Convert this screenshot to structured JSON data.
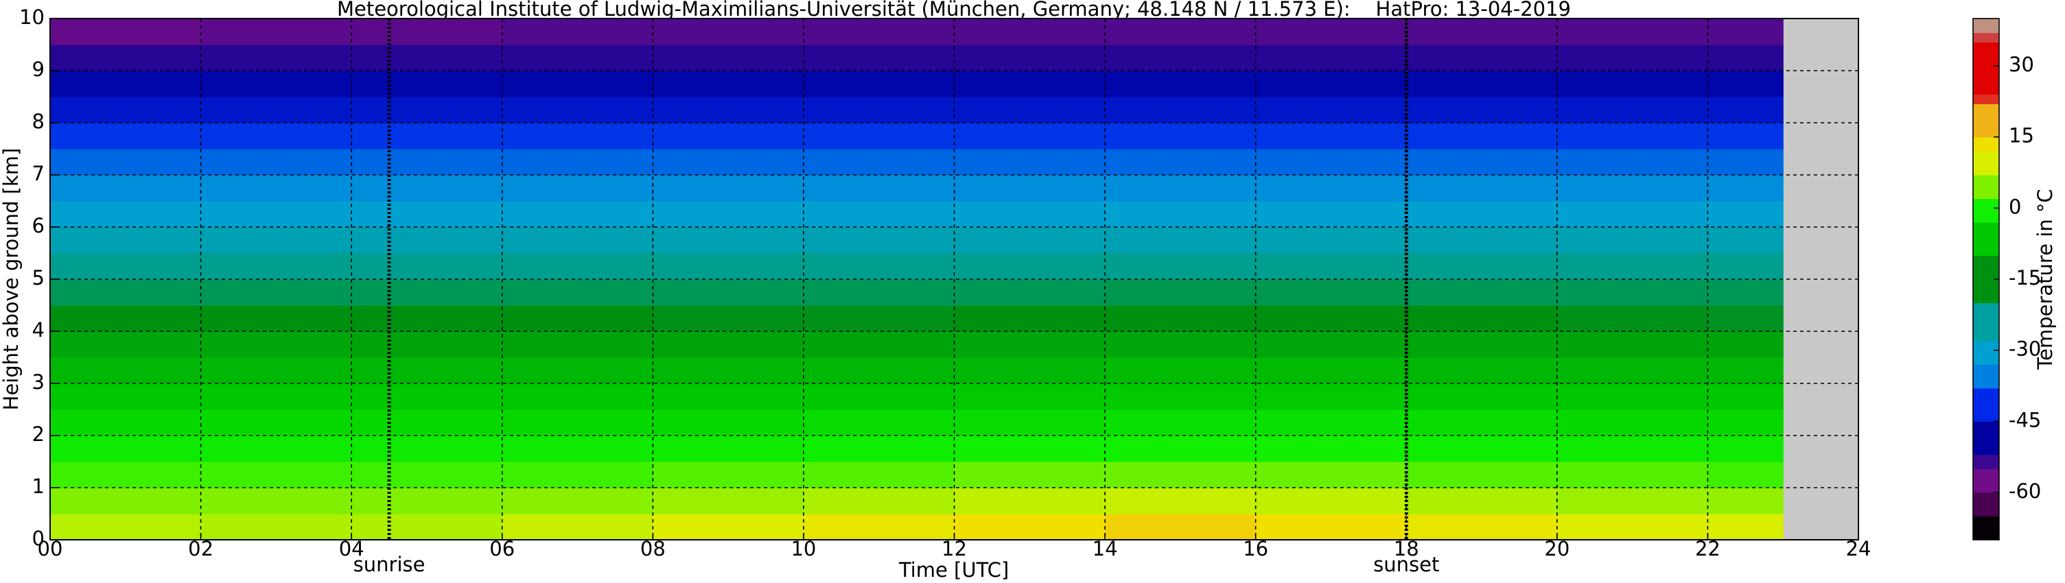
{
  "chart_data": {
    "type": "heatmap",
    "title": "Meteorological Institute of Ludwig-Maximilians-Universität (München, Germany; 48.148 N / 11.573 E):    HatPro: 13-04-2019",
    "x_label": "Time [UTC]",
    "y_label": "Height above ground [km]",
    "colorbar_label": "Temperature in °C",
    "x_edges": [
      0,
      2,
      4,
      6,
      8,
      10,
      12,
      14,
      16,
      18,
      20,
      22,
      23
    ],
    "y_edges": [
      0,
      0.5,
      1,
      1.5,
      2,
      2.5,
      3,
      3.5,
      4,
      4.5,
      5,
      5.5,
      6,
      6.5,
      7,
      7.5,
      8,
      8.5,
      9,
      9.5,
      10
    ],
    "values": [
      [
        5,
        4.5,
        4.5,
        6,
        8,
        10,
        12,
        13,
        12,
        10,
        8,
        7
      ],
      [
        2,
        2,
        2,
        2.5,
        3.5,
        4.5,
        5.5,
        6,
        5.5,
        4.5,
        3.5,
        3
      ],
      [
        -1,
        -1,
        -1,
        -1,
        0,
        0,
        1,
        1,
        1,
        0,
        0,
        -1
      ],
      [
        -4,
        -4,
        -4,
        -4,
        -4,
        -3.5,
        -3,
        -3,
        -3,
        -3.5,
        -4,
        -4
      ],
      [
        -7,
        -7,
        -7,
        -7,
        -7,
        -6.5,
        -6.5,
        -6,
        -6,
        -6.5,
        -7,
        -7
      ],
      [
        -10,
        -10,
        -10,
        -10,
        -10,
        -10,
        -9.5,
        -9.5,
        -9.5,
        -10,
        -10,
        -10
      ],
      [
        -13,
        -13,
        -13,
        -13,
        -13,
        -13,
        -13,
        -12.5,
        -12.5,
        -13,
        -13,
        -13
      ],
      [
        -16,
        -16,
        -16.5,
        -16.5,
        -16.5,
        -16.5,
        -16,
        -16,
        -16,
        -16,
        -16.5,
        -16.5
      ],
      [
        -20,
        -20,
        -20,
        -20,
        -20.5,
        -20.5,
        -20,
        -20,
        -20,
        -20,
        -20.5,
        -21
      ],
      [
        -24,
        -24,
        -24,
        -24,
        -24,
        -24,
        -24,
        -23.5,
        -23.5,
        -24,
        -24,
        -24
      ],
      [
        -27,
        -27,
        -27,
        -27,
        -27,
        -27,
        -27,
        -27,
        -27,
        -27,
        -27,
        -27
      ],
      [
        -30,
        -30,
        -30,
        -30,
        -30,
        -30,
        -30,
        -30,
        -30,
        -30,
        -30,
        -30
      ],
      [
        -33,
        -33,
        -33,
        -33,
        -33,
        -33,
        -33,
        -33,
        -33,
        -33,
        -33,
        -33
      ],
      [
        -36,
        -36,
        -36,
        -36,
        -36,
        -36,
        -36,
        -36,
        -36,
        -36,
        -36,
        -36
      ],
      [
        -40,
        -40,
        -40,
        -40,
        -40,
        -40,
        -40,
        -40,
        -40,
        -40,
        -40,
        -40
      ],
      [
        -44,
        -44,
        -44,
        -44,
        -44,
        -44,
        -44,
        -44,
        -44,
        -44,
        -44,
        -44
      ],
      [
        -48,
        -48,
        -48,
        -48,
        -48,
        -48,
        -48,
        -48,
        -48,
        -48,
        -48,
        -48
      ],
      [
        -51,
        -51,
        -51,
        -51,
        -51,
        -51,
        -51,
        -51,
        -51,
        -51,
        -51,
        -51
      ],
      [
        -54,
        -54,
        -54,
        -54,
        -54,
        -54,
        -54,
        -54,
        -54,
        -54,
        -54,
        -54
      ],
      [
        -59,
        -58,
        -58,
        -57,
        -57,
        -57,
        -57,
        -57,
        -57,
        -57,
        -57,
        -57
      ]
    ],
    "xlim": [
      0,
      24
    ],
    "ylim": [
      0,
      10
    ],
    "clim": [
      -70,
      40
    ],
    "xticks": [
      {
        "value": 0,
        "label": "00"
      },
      {
        "value": 2,
        "label": "02"
      },
      {
        "value": 4,
        "label": "04"
      },
      {
        "value": 6,
        "label": "06"
      },
      {
        "value": 8,
        "label": "08"
      },
      {
        "value": 10,
        "label": "10"
      },
      {
        "value": 12,
        "label": "12"
      },
      {
        "value": 14,
        "label": "14"
      },
      {
        "value": 16,
        "label": "16"
      },
      {
        "value": 18,
        "label": "18"
      },
      {
        "value": 20,
        "label": "20"
      },
      {
        "value": 22,
        "label": "22"
      },
      {
        "value": 24,
        "label": "24"
      }
    ],
    "yticks": [
      0,
      1,
      2,
      3,
      4,
      5,
      6,
      7,
      8,
      9,
      10
    ],
    "cticks": [
      -60,
      -45,
      -30,
      -15,
      0,
      15,
      30
    ],
    "grid": true,
    "annotations": [
      {
        "text": "sunrise",
        "x": 4.5
      },
      {
        "text": "sunset",
        "x": 18
      }
    ],
    "colormap": [
      {
        "value": -70,
        "color": "#050005"
      },
      {
        "value": -65,
        "color": "#4a0050"
      },
      {
        "value": -60,
        "color": "#700c88"
      },
      {
        "value": -55,
        "color": "#3a0890"
      },
      {
        "value": -52,
        "color": "#0000a0"
      },
      {
        "value": -45,
        "color": "#0028e8"
      },
      {
        "value": -38,
        "color": "#0080e0"
      },
      {
        "value": -33,
        "color": "#00a0d0"
      },
      {
        "value": -28,
        "color": "#00a0a0"
      },
      {
        "value": -20,
        "color": "#009010"
      },
      {
        "value": -10,
        "color": "#00c800"
      },
      {
        "value": -3,
        "color": "#10f000"
      },
      {
        "value": 2,
        "color": "#80f000"
      },
      {
        "value": 7,
        "color": "#d8f000"
      },
      {
        "value": 12,
        "color": "#f0e000"
      },
      {
        "value": 15,
        "color": "#f0b418"
      },
      {
        "value": 22,
        "color": "#e03020"
      },
      {
        "value": 24,
        "color": "#e00000"
      },
      {
        "value": 35,
        "color": "#d04040"
      },
      {
        "value": 37,
        "color": "#c09080"
      },
      {
        "value": 40,
        "color": "#c0a090"
      }
    ]
  }
}
